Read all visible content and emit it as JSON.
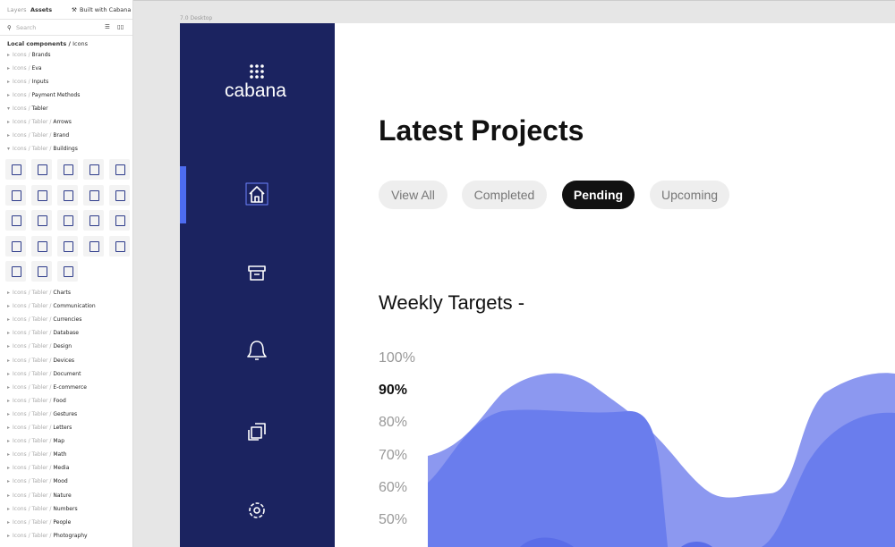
{
  "sidebar": {
    "tabs": [
      "Layers",
      "Assets"
    ],
    "built_with": "Built with Cabana",
    "search_placeholder": "Search",
    "breadcrumb": {
      "root": "Local components /",
      "current": "Icons"
    },
    "tree_top": [
      {
        "prefix": "Icons /",
        "label": "Brands",
        "open": false
      },
      {
        "prefix": "Icons /",
        "label": "Eva",
        "open": false
      },
      {
        "prefix": "Icons /",
        "label": "Inputs",
        "open": false
      },
      {
        "prefix": "Icons /",
        "label": "Payment Methods",
        "open": false
      },
      {
        "prefix": "Icons /",
        "label": "Tabler",
        "open": true
      },
      {
        "prefix": "Icons / Tabler /",
        "label": "Arrows",
        "open": false
      },
      {
        "prefix": "Icons / Tabler /",
        "label": "Brand",
        "open": false
      },
      {
        "prefix": "Icons / Tabler /",
        "label": "Buildings",
        "open": true
      }
    ],
    "tree_bottom": [
      {
        "prefix": "Icons / Tabler /",
        "label": "Charts"
      },
      {
        "prefix": "Icons / Tabler /",
        "label": "Communication"
      },
      {
        "prefix": "Icons / Tabler /",
        "label": "Currencies"
      },
      {
        "prefix": "Icons / Tabler /",
        "label": "Database"
      },
      {
        "prefix": "Icons / Tabler /",
        "label": "Design"
      },
      {
        "prefix": "Icons / Tabler /",
        "label": "Devices"
      },
      {
        "prefix": "Icons / Tabler /",
        "label": "Document"
      },
      {
        "prefix": "Icons / Tabler /",
        "label": "E-commerce"
      },
      {
        "prefix": "Icons / Tabler /",
        "label": "Food"
      },
      {
        "prefix": "Icons / Tabler /",
        "label": "Gestures"
      },
      {
        "prefix": "Icons / Tabler /",
        "label": "Letters"
      },
      {
        "prefix": "Icons / Tabler /",
        "label": "Map"
      },
      {
        "prefix": "Icons / Tabler /",
        "label": "Math"
      },
      {
        "prefix": "Icons / Tabler /",
        "label": "Media"
      },
      {
        "prefix": "Icons / Tabler /",
        "label": "Mood"
      },
      {
        "prefix": "Icons / Tabler /",
        "label": "Nature"
      },
      {
        "prefix": "Icons / Tabler /",
        "label": "Numbers"
      },
      {
        "prefix": "Icons / Tabler /",
        "label": "People"
      },
      {
        "prefix": "Icons / Tabler /",
        "label": "Photography"
      }
    ]
  },
  "frame_label": "7.0 Desktop",
  "app": {
    "logo": "cabana",
    "heading": "Latest Projects",
    "filters": [
      "View All",
      "Completed",
      "Pending",
      "Upcoming"
    ],
    "active_filter": 2,
    "section_title": "Weekly Targets -",
    "y_labels": [
      "100%",
      "90%",
      "80%",
      "70%",
      "60%",
      "50%"
    ],
    "highlight_label": 1
  }
}
